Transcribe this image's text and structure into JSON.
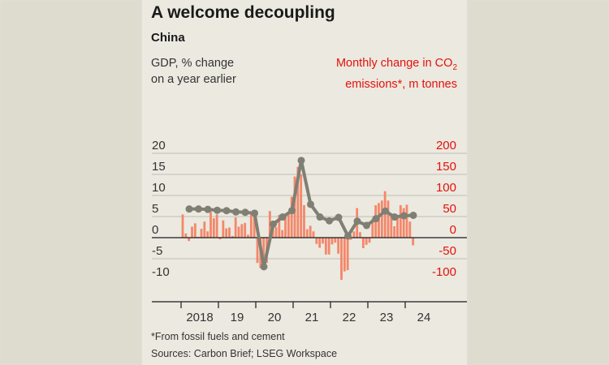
{
  "header": {
    "title": "A welcome decoupling",
    "subtitle": "China"
  },
  "footnotes": {
    "note": "*From fossil fuels and cement",
    "sources": "Sources: Carbon Brief; LSEG Workspace"
  },
  "colors": {
    "bars": "#f4876a",
    "line": "#7f7f74",
    "right_axis": "#e3120b",
    "grid": "#c9c7bd",
    "background": "#ebe9e0"
  },
  "chart_data": {
    "type": "bar+line",
    "left_axis": {
      "label_line1": "GDP, % change",
      "label_line2": "on a year earlier",
      "range": [
        -10,
        20
      ],
      "ticks": [
        "20",
        "15",
        "10",
        "5",
        "0",
        "-5",
        "-10"
      ]
    },
    "right_axis": {
      "label_line1": "Monthly change in CO",
      "label_sub": "2",
      "label_line1_end": "",
      "label_line2": "emissions*, m tonnes",
      "range": [
        -100,
        200
      ],
      "ticks": [
        "200",
        "150",
        "100",
        "50",
        "0",
        "-50",
        "-100"
      ]
    },
    "x_ticks": [
      "2018",
      "19",
      "20",
      "21",
      "22",
      "23",
      "24"
    ],
    "grid": true,
    "bar_series": {
      "axis": "right",
      "start": "2018-01",
      "frequency": "monthly",
      "values": [
        55,
        10,
        -8,
        26,
        34,
        2,
        21,
        38,
        15,
        61,
        46,
        55,
        -4,
        41,
        22,
        24,
        4,
        48,
        26,
        32,
        35,
        7,
        57,
        55,
        -60,
        -72,
        -72,
        -60,
        63,
        40,
        25,
        54,
        18,
        55,
        60,
        97,
        145,
        168,
        150,
        77,
        20,
        28,
        15,
        -15,
        -24,
        -14,
        -40,
        -40,
        -16,
        -12,
        -38,
        -100,
        -80,
        -77,
        -5,
        15,
        70,
        13,
        -25,
        -17,
        -12,
        45,
        77,
        82,
        88,
        110,
        88,
        57,
        27,
        50,
        77,
        70,
        78,
        38,
        -18
      ]
    },
    "line_series": {
      "axis": "left",
      "frequency": "quarterly",
      "start": "2018-Q1",
      "values": [
        6.8,
        6.8,
        6.7,
        6.5,
        6.4,
        6.1,
        6.0,
        5.8,
        -6.9,
        3.2,
        4.9,
        6.4,
        18.3,
        7.9,
        4.9,
        4.0,
        4.8,
        0.4,
        3.9,
        2.9,
        4.5,
        6.3,
        4.9,
        5.2,
        5.3
      ]
    }
  }
}
